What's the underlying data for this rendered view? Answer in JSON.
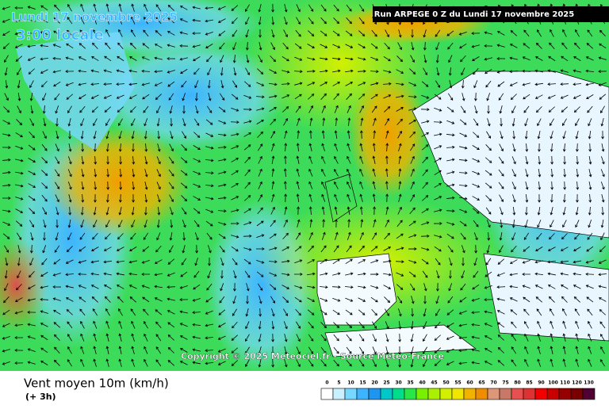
{
  "map_header": {
    "date": "Lundi 17 novembre 2025",
    "time": "3:00 locale",
    "run": "Run ARPEGE 0 Z du Lundi 17 novembre 2025"
  },
  "copyright": "Copyright © 2025 Meteociel.fr - Source Meteo-France",
  "footer": {
    "title": "Vent moyen 10m (km/h)",
    "subtitle": "(+ 3h)"
  },
  "legend": [
    {
      "label": 0,
      "color": "#ffffff"
    },
    {
      "label": 5,
      "color": "#c8f0ff"
    },
    {
      "label": 10,
      "color": "#78d7ff"
    },
    {
      "label": 15,
      "color": "#3cb4ff"
    },
    {
      "label": 20,
      "color": "#1e96f0"
    },
    {
      "label": 25,
      "color": "#00c8c8"
    },
    {
      "label": 30,
      "color": "#00dc8c"
    },
    {
      "label": 35,
      "color": "#28e646"
    },
    {
      "label": 40,
      "color": "#78f000"
    },
    {
      "label": 45,
      "color": "#aaf000"
    },
    {
      "label": 50,
      "color": "#d2f000"
    },
    {
      "label": 55,
      "color": "#f0e600"
    },
    {
      "label": 60,
      "color": "#f0b400"
    },
    {
      "label": 65,
      "color": "#f08c00"
    },
    {
      "label": 70,
      "color": "#dc9678"
    },
    {
      "label": 75,
      "color": "#c87864"
    },
    {
      "label": 80,
      "color": "#e65050"
    },
    {
      "label": 85,
      "color": "#dc3232"
    },
    {
      "label": 90,
      "color": "#f00000"
    },
    {
      "label": 100,
      "color": "#c80000"
    },
    {
      "label": 110,
      "color": "#960000"
    },
    {
      "label": 120,
      "color": "#780000"
    },
    {
      "label": 130,
      "color": "#500032"
    }
  ]
}
